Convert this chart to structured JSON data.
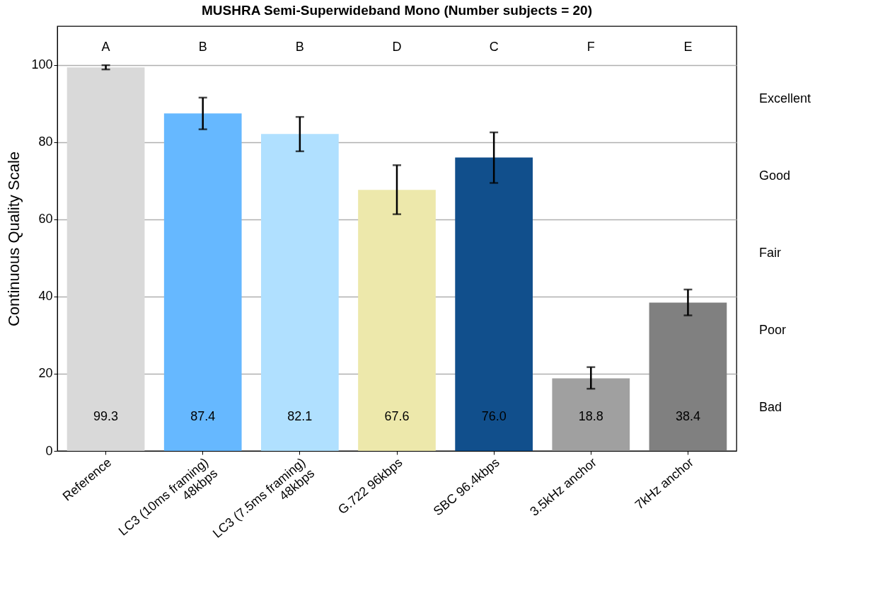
{
  "chart_data": {
    "type": "bar",
    "title": "MUSHRA Semi-Superwideband Mono (Number subjects = 20)",
    "ylabel": "Continuous Quality Scale",
    "categories": [
      "Reference",
      "LC3 (10ms framing)\n48kbps",
      "LC3 (7.5ms framing)\n48kbps",
      "G.722 96kbps",
      "SBC 96.4kbps",
      "3.5kHz anchor",
      "7kHz anchor"
    ],
    "values": [
      99.3,
      87.4,
      82.1,
      67.6,
      76.0,
      18.8,
      38.4
    ],
    "colors": [
      "#d9d9d9",
      "#66b8ff",
      "#b0e0ff",
      "#ede8ab",
      "#114f8c",
      "#a0a0a0",
      "#808080"
    ],
    "errors": [
      [
        98.8,
        99.9
      ],
      [
        83.3,
        91.5
      ],
      [
        77.6,
        86.5
      ],
      [
        61.3,
        74.0
      ],
      [
        69.4,
        82.5
      ],
      [
        16.1,
        21.7
      ],
      [
        35.1,
        41.8
      ]
    ],
    "value_labels": [
      "99.3",
      "87.4",
      "82.1",
      "67.6",
      "76.0",
      "18.8",
      "38.4"
    ],
    "ylim": [
      0,
      110
    ],
    "yticks": [
      0,
      20,
      40,
      60,
      80,
      100
    ],
    "grid": "y",
    "annotations": [
      "A",
      "B",
      "B",
      "D",
      "C",
      "F",
      "E",
      "Excellent",
      "Good",
      "Fair",
      "Poor",
      "Bad"
    ]
  }
}
